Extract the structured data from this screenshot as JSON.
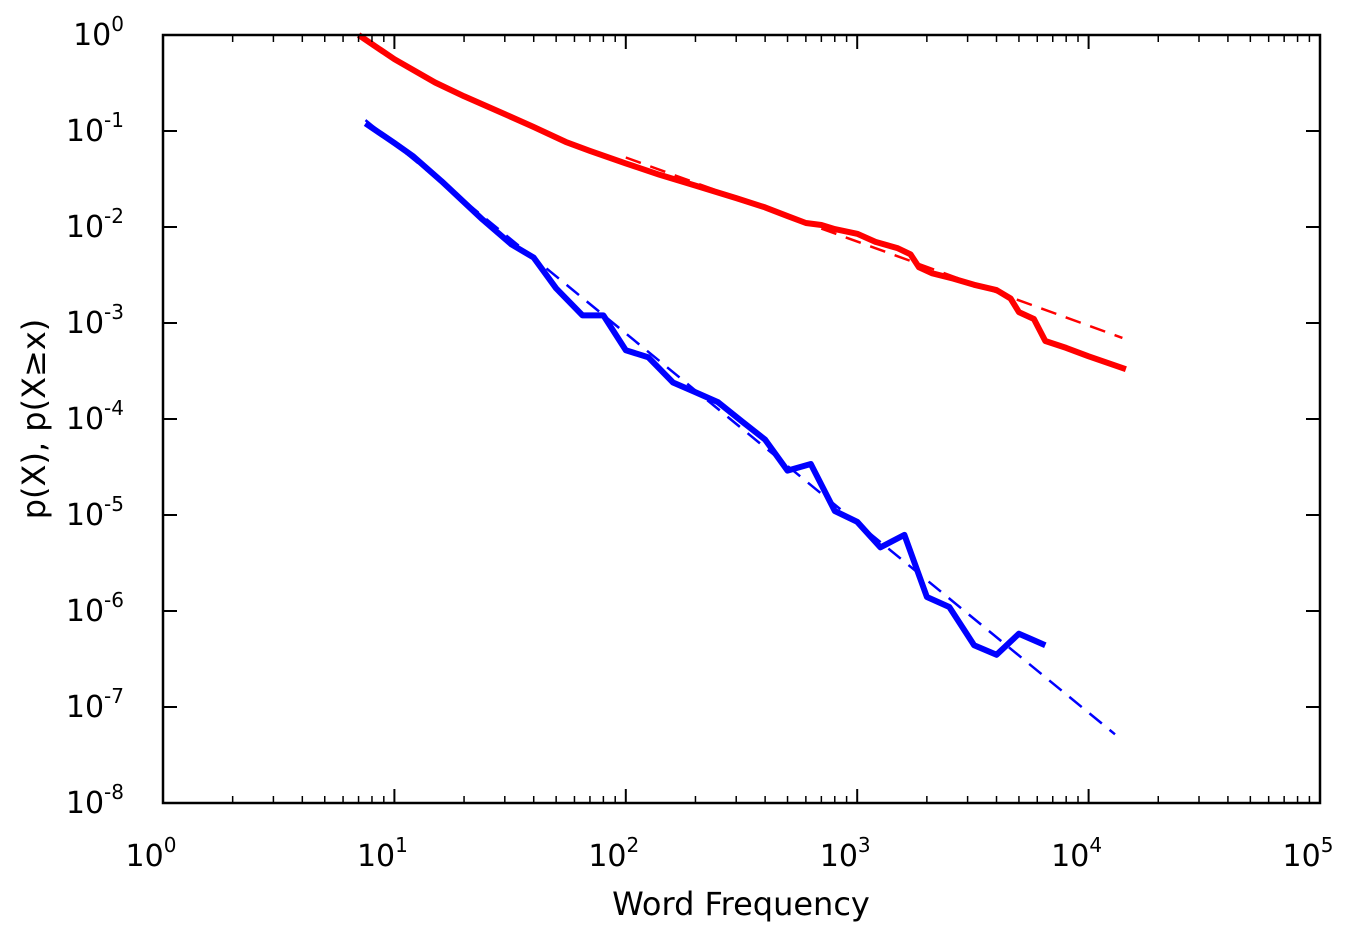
{
  "chart_data": {
    "type": "line",
    "xlabel": "Word Frequency",
    "ylabel": "p(X),  p(X≥x)",
    "xscale": "log",
    "yscale": "log",
    "xlim": [
      1,
      100000
    ],
    "ylim": [
      1e-08,
      1
    ],
    "grid": false,
    "legend": "none",
    "x_ticks": [
      {
        "base": "10",
        "exp": "0",
        "value": 1
      },
      {
        "base": "10",
        "exp": "1",
        "value": 10
      },
      {
        "base": "10",
        "exp": "2",
        "value": 100
      },
      {
        "base": "10",
        "exp": "3",
        "value": 1000
      },
      {
        "base": "10",
        "exp": "4",
        "value": 10000
      },
      {
        "base": "10",
        "exp": "5",
        "value": 100000
      }
    ],
    "y_ticks": [
      {
        "base": "10",
        "exp": "0",
        "value": 1
      },
      {
        "base": "10",
        "exp": "-1",
        "value": 0.1
      },
      {
        "base": "10",
        "exp": "-2",
        "value": 0.01
      },
      {
        "base": "10",
        "exp": "-3",
        "value": 0.001
      },
      {
        "base": "10",
        "exp": "-4",
        "value": 0.0001
      },
      {
        "base": "10",
        "exp": "-5",
        "value": 1e-05
      },
      {
        "base": "10",
        "exp": "-6",
        "value": 1e-06
      },
      {
        "base": "10",
        "exp": "-7",
        "value": 1e-07
      },
      {
        "base": "10",
        "exp": "-8",
        "value": 1e-08
      }
    ],
    "series": [
      {
        "color": "#ff0000",
        "style": "solid",
        "width": "thick",
        "x": [
          7,
          10,
          15,
          20,
          30,
          40,
          55,
          70,
          100,
          140,
          200,
          300,
          400,
          500,
          600,
          700,
          800,
          1000,
          1200,
          1500,
          1700,
          1850,
          2100,
          2600,
          3200,
          4000,
          4600,
          5000,
          5800,
          6500,
          8000,
          10000,
          14500
        ],
        "y": [
          1.0,
          0.56,
          0.32,
          0.23,
          0.15,
          0.11,
          0.077,
          0.062,
          0.046,
          0.035,
          0.027,
          0.02,
          0.016,
          0.013,
          0.011,
          0.0105,
          0.0095,
          0.0085,
          0.007,
          0.006,
          0.0052,
          0.0038,
          0.0033,
          0.0029,
          0.0025,
          0.0022,
          0.0018,
          0.0013,
          0.0011,
          0.00065,
          0.00055,
          0.00045,
          0.00033
        ]
      },
      {
        "color": "#ff0000",
        "style": "dashed",
        "width": "thin",
        "x": [
          100,
          14000
        ],
        "y": [
          0.053,
          0.0007
        ]
      },
      {
        "color": "#0000ff",
        "style": "solid",
        "width": "thick",
        "x": [
          7.5,
          10,
          12,
          16,
          24,
          32,
          40,
          50,
          65,
          80,
          100,
          125,
          160,
          200,
          250,
          320,
          400,
          500,
          630,
          800,
          1000,
          1260,
          1600,
          2000,
          2500,
          3200,
          4000,
          5000,
          6500
        ],
        "y": [
          0.12,
          0.075,
          0.055,
          0.03,
          0.012,
          0.0066,
          0.0048,
          0.0023,
          0.0012,
          0.0012,
          0.00052,
          0.00044,
          0.00024,
          0.00019,
          0.00015,
          9.3e-05,
          6.1e-05,
          2.9e-05,
          3.4e-05,
          1.1e-05,
          8.5e-06,
          4.6e-06,
          6.2e-06,
          1.4e-06,
          1.1e-06,
          4.4e-07,
          3.5e-07,
          5.8e-07,
          4.4e-07
        ]
      },
      {
        "color": "#0000ff",
        "style": "dashed",
        "width": "thin",
        "x": [
          7.5,
          13000
        ],
        "y": [
          0.13,
          5.2e-08
        ]
      }
    ]
  }
}
